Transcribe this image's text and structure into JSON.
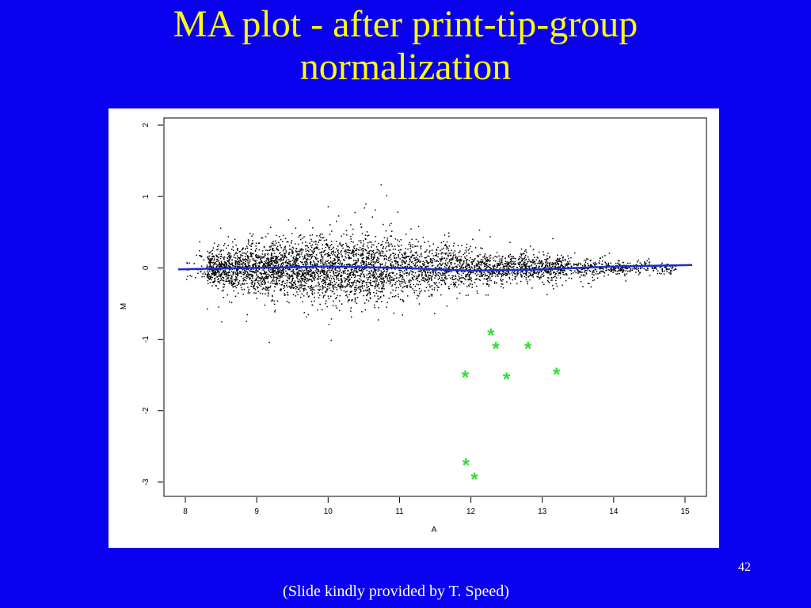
{
  "slide": {
    "title_line1": "MA plot - after print-tip-group",
    "title_line2": "normalization",
    "slide_number": "42",
    "credit": "(Slide kindly provided by T. Speed)"
  },
  "colors": {
    "background": "#0a00f0",
    "title": "#ffff00",
    "points": "#000000",
    "loess_line": "#1a2fd0",
    "highlight": "#33dd33"
  },
  "chart_data": {
    "type": "scatter",
    "title": "",
    "xlabel": "A",
    "ylabel": "M",
    "xlim": [
      7.7,
      15.3
    ],
    "ylim": [
      -3.2,
      2.1
    ],
    "x_ticks": [
      8,
      9,
      10,
      11,
      12,
      13,
      14,
      15
    ],
    "y_ticks": [
      -3,
      -2,
      -1,
      0,
      1,
      2
    ],
    "grid": false,
    "legend": "none",
    "series": [
      {
        "kind": "point cloud",
        "approx_count": 5000,
        "shape_by_A_band": [
          {
            "A": 8.0,
            "M_spread": 0.15,
            "density": "sparse"
          },
          {
            "A": 8.5,
            "M_spread": 0.35,
            "density": "dense"
          },
          {
            "A": 9.0,
            "M_spread": 0.45,
            "density": "dense"
          },
          {
            "A": 9.5,
            "M_spread": 0.5,
            "density": "dense"
          },
          {
            "A": 10.0,
            "M_spread": 0.55,
            "density": "dense"
          },
          {
            "A": 10.5,
            "M_spread": 0.6,
            "density": "dense"
          },
          {
            "A": 11.0,
            "M_spread": 0.55,
            "density": "medium"
          },
          {
            "A": 11.5,
            "M_spread": 0.45,
            "density": "medium"
          },
          {
            "A": 12.0,
            "M_spread": 0.35,
            "density": "medium"
          },
          {
            "A": 12.5,
            "M_spread": 0.25,
            "density": "medium"
          },
          {
            "A": 13.0,
            "M_spread": 0.22,
            "density": "medium"
          },
          {
            "A": 13.5,
            "M_spread": 0.18,
            "density": "sparse"
          },
          {
            "A": 14.0,
            "M_spread": 0.12,
            "density": "sparse"
          },
          {
            "A": 14.5,
            "M_spread": 0.1,
            "density": "sparse"
          }
        ]
      },
      {
        "kind": "loess line",
        "x": [
          7.9,
          9,
          10,
          11,
          12,
          13,
          14,
          15.1
        ],
        "y": [
          -0.02,
          0.0,
          0.02,
          0.0,
          -0.04,
          -0.02,
          0.02,
          0.04
        ]
      },
      {
        "kind": "highlighted points",
        "marker": "*",
        "x": [
          12.28,
          12.35,
          12.8,
          11.92,
          12.5,
          13.2,
          11.93,
          12.05
        ],
        "y": [
          -0.93,
          -1.12,
          -1.12,
          -1.52,
          -1.55,
          -1.48,
          -2.75,
          -2.95
        ]
      }
    ]
  }
}
